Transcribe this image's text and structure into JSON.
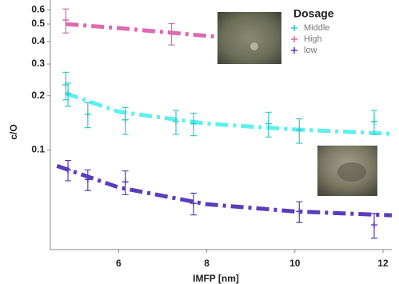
{
  "chart_data": {
    "type": "scatter",
    "y_label": "c/O",
    "x_label": "IMFP [nm]",
    "legend_title": "Dosage",
    "legend_title_color": "#7b3fc4",
    "xlim": [
      4.45,
      12.2
    ],
    "xticks": [
      6,
      8,
      10,
      12
    ],
    "ylim": [
      0.028,
      0.68
    ],
    "yticks": [
      0.1,
      0.2,
      0.3,
      0.4,
      0.5,
      0.6
    ],
    "log_y": true,
    "grid": false,
    "legend": "upper right",
    "series": [
      {
        "name": "Middle",
        "color": "#36c9c9",
        "fit_color": "#5cf0f0",
        "x": [
          4.8,
          4.85,
          5.3,
          6.15,
          7.3,
          7.7,
          9.4,
          10.1,
          11.8
        ],
        "values": [
          0.23,
          0.205,
          0.158,
          0.147,
          0.144,
          0.14,
          0.14,
          0.129,
          0.144
        ],
        "errors": [
          0.04,
          0.03,
          0.025,
          0.025,
          0.022,
          0.02,
          0.022,
          0.02,
          0.022
        ],
        "fit": {
          "x": [
            4.8,
            6,
            8,
            10,
            12.2
          ],
          "values": [
            0.206,
            0.163,
            0.14,
            0.13,
            0.123
          ]
        }
      },
      {
        "name": "High",
        "color": "#dd6aae",
        "fit_color": "#dd6aae",
        "x": [
          4.8,
          7.2
        ],
        "values": [
          0.526,
          0.443
        ],
        "errors": [
          0.08,
          0.06
        ],
        "fit": {
          "x": [
            4.8,
            6,
            8,
            8.5
          ],
          "values": [
            0.5,
            0.475,
            0.43,
            0.42
          ]
        }
      },
      {
        "name": "low",
        "color": "#5a3cbd",
        "fit_color": "#5a3cbd",
        "x": [
          4.85,
          5.3,
          6.15,
          7.7,
          10.1,
          11.8
        ],
        "values": [
          0.0775,
          0.0686,
          0.0665,
          0.0506,
          0.0456,
          0.0384
        ],
        "errors": [
          0.01,
          0.009,
          0.01,
          0.007,
          0.006,
          0.006
        ],
        "fit": {
          "x": [
            4.6,
            6,
            8,
            10,
            12.2
          ],
          "values": [
            0.0816,
            0.062,
            0.05,
            0.0456,
            0.0434
          ]
        }
      }
    ]
  }
}
